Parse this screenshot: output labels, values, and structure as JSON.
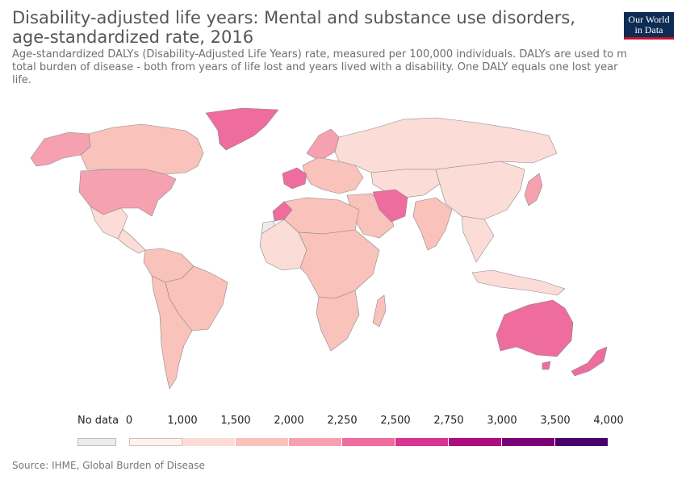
{
  "title": "Disability-adjusted life years: Mental and substance use disorders, age-standardized rate, 2016",
  "subtitle": "Age-standardized DALYs (Disability-Adjusted Life Years) rate, measured per 100,000 individuals. DALYs are used to m\ntotal burden of disease - both from years of life lost and years lived with a disability. One DALY equals one lost year\nlife.",
  "logo": {
    "line1": "Our World",
    "line2": "in Data"
  },
  "legend": {
    "no_data_label": "No data",
    "ticks": [
      "0",
      "1,000",
      "1,500",
      "2,000",
      "2,250",
      "2,500",
      "2,750",
      "3,000",
      "3,500",
      "4,000"
    ],
    "bins": [
      {
        "from": 0,
        "to": 1000,
        "color": "#fdf3ee"
      },
      {
        "from": 1000,
        "to": 1500,
        "color": "#fbdcd7"
      },
      {
        "from": 1500,
        "to": 2000,
        "color": "#f9c2bb"
      },
      {
        "from": 2000,
        "to": 2250,
        "color": "#f6a1b0"
      },
      {
        "from": 2250,
        "to": 2500,
        "color": "#ef6c9f"
      },
      {
        "from": 2500,
        "to": 2750,
        "color": "#d7358f"
      },
      {
        "from": 2750,
        "to": 3000,
        "color": "#ac0d81"
      },
      {
        "from": 3000,
        "to": 3500,
        "color": "#7a0177"
      },
      {
        "from": 3500,
        "to": 4000,
        "color": "#49006a"
      }
    ],
    "no_data_color": "#ececec"
  },
  "map": {
    "regions": [
      {
        "name": "Greenland",
        "color": "#ef6c9f"
      },
      {
        "name": "Alaska",
        "color": "#f6a1b0"
      },
      {
        "name": "Canada",
        "color": "#f9c2bb"
      },
      {
        "name": "United States",
        "color": "#f6a1b0"
      },
      {
        "name": "Mexico",
        "color": "#fbdcd7"
      },
      {
        "name": "Central America",
        "color": "#fbdcd7"
      },
      {
        "name": "South America North",
        "color": "#f9c2bb"
      },
      {
        "name": "Brazil",
        "color": "#f9c2bb"
      },
      {
        "name": "South America South",
        "color": "#f9c2bb"
      },
      {
        "name": "Europe",
        "color": "#f9c2bb"
      },
      {
        "name": "Scandinavia",
        "color": "#f6a1b0"
      },
      {
        "name": "France",
        "color": "#ef6c9f"
      },
      {
        "name": "Russia",
        "color": "#fbdcd7"
      },
      {
        "name": "Central Asia",
        "color": "#fbdcd7"
      },
      {
        "name": "China",
        "color": "#fbdcd7"
      },
      {
        "name": "Middle East",
        "color": "#f9c2bb"
      },
      {
        "name": "Iran",
        "color": "#ef6c9f"
      },
      {
        "name": "India",
        "color": "#f9c2bb"
      },
      {
        "name": "Southeast Asia",
        "color": "#fbdcd7"
      },
      {
        "name": "Japan",
        "color": "#f6a1b0"
      },
      {
        "name": "Morocco",
        "color": "#ef6c9f"
      },
      {
        "name": "North Africa",
        "color": "#f9c2bb"
      },
      {
        "name": "West Africa",
        "color": "#fbdcd7"
      },
      {
        "name": "Central and East Africa",
        "color": "#f9c2bb"
      },
      {
        "name": "Southern Africa",
        "color": "#f9c2bb"
      },
      {
        "name": "Madagascar",
        "color": "#f9c2bb"
      },
      {
        "name": "Australia",
        "color": "#ef6c9f"
      },
      {
        "name": "New Zealand",
        "color": "#ef6c9f"
      },
      {
        "name": "Indonesia",
        "color": "#fbdcd7"
      },
      {
        "name": "Western Sahara",
        "color": "#ececec"
      }
    ]
  },
  "source": "Source: IHME, Global Burden of Disease"
}
